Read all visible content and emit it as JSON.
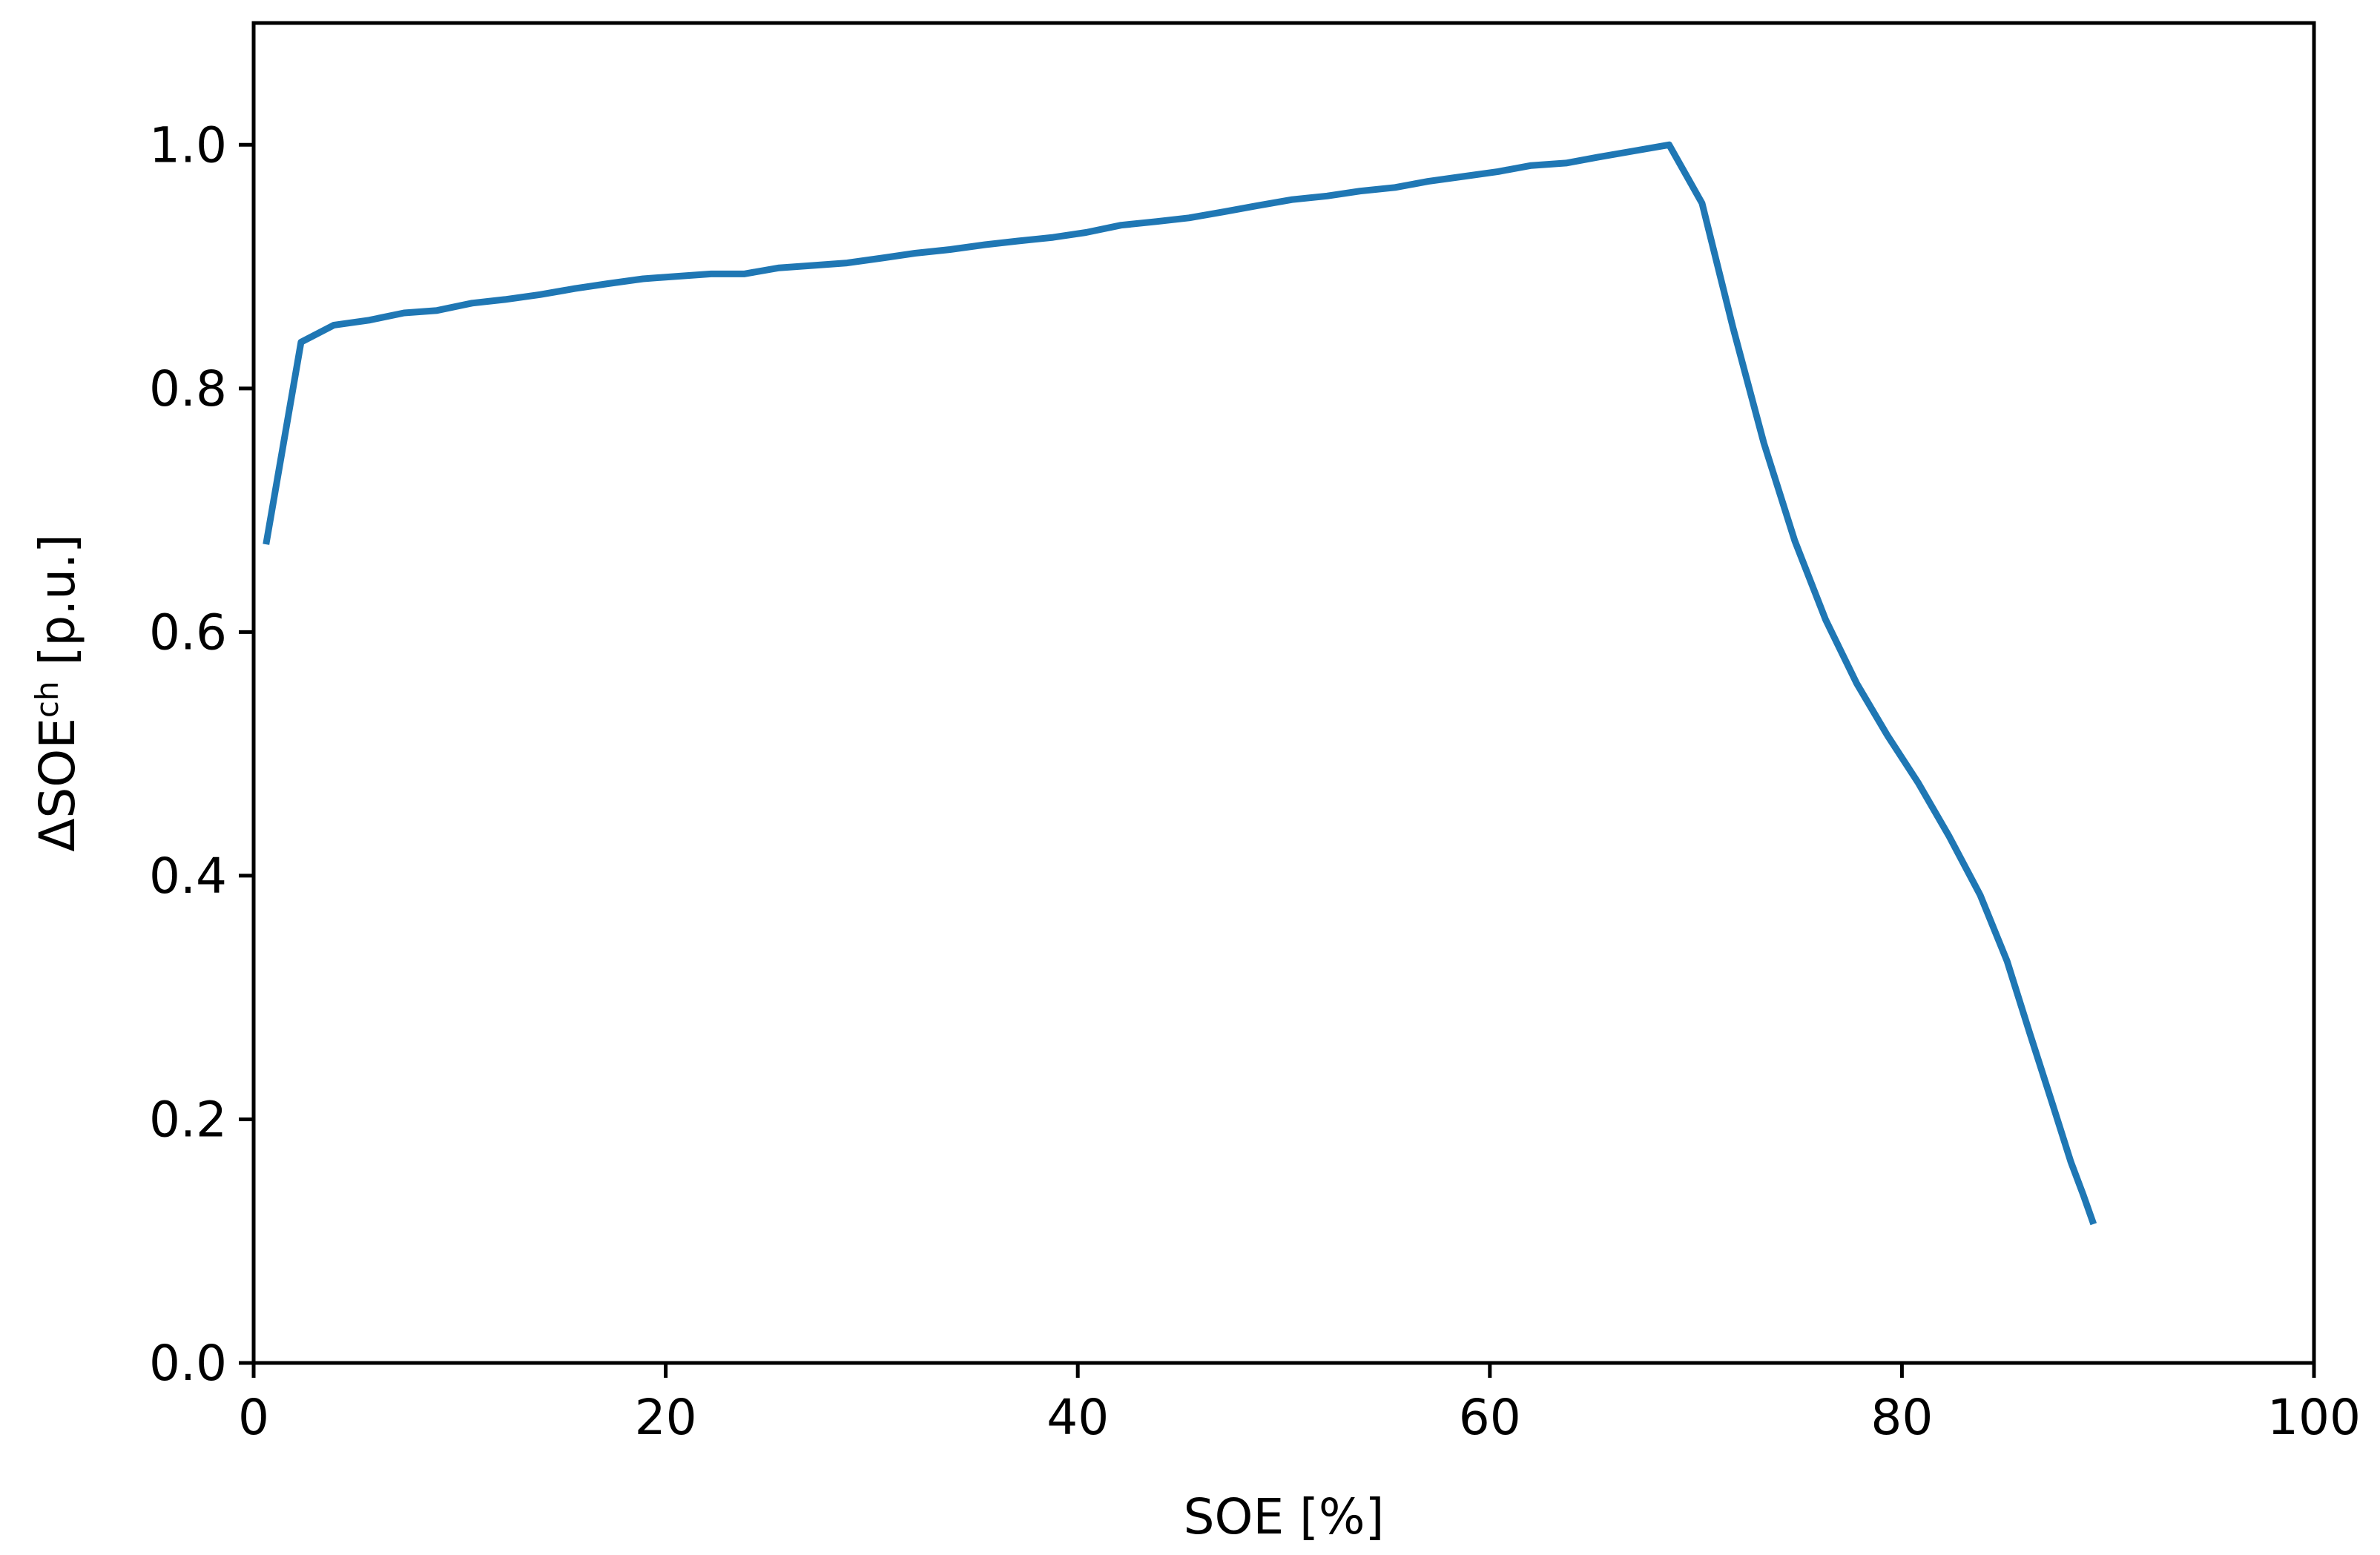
{
  "chart_data": {
    "type": "line",
    "title": "",
    "xlabel": "SOE [%]",
    "ylabel": {
      "prefix": "ΔSOE",
      "superscript": "ch",
      "suffix": " [p.u.]"
    },
    "xlim": [
      0,
      100
    ],
    "ylim": [
      0,
      1.1
    ],
    "grid": false,
    "legend": "none",
    "x_ticks": [
      0,
      20,
      40,
      60,
      80,
      100
    ],
    "x_tick_labels": [
      "0",
      "20",
      "40",
      "60",
      "80",
      "100"
    ],
    "y_ticks": [
      0.0,
      0.2,
      0.4,
      0.6,
      0.8,
      1.0
    ],
    "y_tick_labels": [
      "0.0",
      "0.2",
      "0.4",
      "0.6",
      "0.8",
      "1.0"
    ],
    "series": [
      {
        "color": "#1f77b4",
        "x": [
          0.6,
          2.3,
          3.9,
          5.6,
          7.3,
          8.9,
          10.6,
          12.2,
          13.9,
          15.6,
          17.2,
          18.9,
          20.5,
          22.2,
          23.8,
          25.5,
          27.2,
          28.8,
          30.5,
          32.1,
          33.8,
          35.5,
          37.1,
          38.8,
          40.4,
          42.1,
          43.8,
          45.4,
          47.1,
          48.7,
          50.4,
          52.1,
          53.7,
          55.4,
          57.0,
          58.7,
          60.4,
          62.0,
          63.7,
          65.3,
          67.0,
          68.7,
          70.3,
          71.8,
          73.3,
          74.8,
          76.3,
          77.8,
          79.3,
          80.8,
          82.3,
          83.8,
          85.1,
          86.2,
          87.3,
          88.2,
          88.8,
          89.3
        ],
        "y": [
          0.672,
          0.838,
          0.852,
          0.856,
          0.862,
          0.864,
          0.87,
          0.873,
          0.877,
          0.882,
          0.886,
          0.89,
          0.892,
          0.894,
          0.894,
          0.899,
          0.901,
          0.903,
          0.907,
          0.911,
          0.914,
          0.918,
          0.921,
          0.924,
          0.928,
          0.934,
          0.937,
          0.94,
          0.945,
          0.95,
          0.955,
          0.958,
          0.962,
          0.965,
          0.97,
          0.974,
          0.978,
          0.983,
          0.985,
          0.99,
          0.995,
          1.0,
          0.952,
          0.85,
          0.755,
          0.675,
          0.61,
          0.558,
          0.515,
          0.476,
          0.432,
          0.384,
          0.33,
          0.271,
          0.213,
          0.165,
          0.138,
          0.114
        ]
      }
    ]
  }
}
